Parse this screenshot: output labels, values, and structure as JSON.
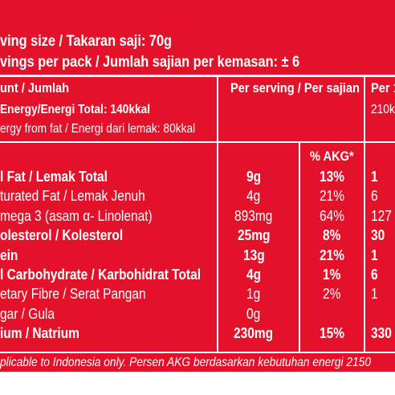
{
  "header": {
    "serving_size": "ving size / Takaran saji: 70g",
    "servings_per_pack": "vings per pack / Jumlah sajian per kemasan: ± 6"
  },
  "table": {
    "col1_header": "unt / Jumlah",
    "col2_header": "Per serving / Per sajian",
    "col3_header": "Per 1",
    "energy_total": "Energy/Energi Total: 140kkal",
    "energy_total_col3": "210k",
    "energy_fat": "ergy from fat / Energi dari lemak: 80kkal",
    "akg_header": "% AKG*",
    "rows": [
      {
        "label": "l Fat / Lemak Total",
        "amount": "9g",
        "akg": "13%",
        "col3": "1",
        "bold": true
      },
      {
        "label": "turated Fat / Lemak Jenuh",
        "amount": "4g",
        "akg": "21%",
        "col3": "6",
        "bold": false
      },
      {
        "label": "mega 3 (asam α- Linolenat)",
        "amount": "893mg",
        "akg": "64%",
        "col3": "127",
        "bold": false
      },
      {
        "label": "olesterol / Kolesterol",
        "amount": "25mg",
        "akg": "8%",
        "col3": "30",
        "bold": true
      },
      {
        "label": "ein",
        "amount": "13g",
        "akg": "21%",
        "col3": "1",
        "bold": true
      },
      {
        "label": "l Carbohydrate / Karbohidrat Total",
        "amount": "4g",
        "akg": "1%",
        "col3": "6",
        "bold": true
      },
      {
        "label": "etary Fibre / Serat Pangan",
        "amount": "1g",
        "akg": "2%",
        "col3": "1",
        "bold": false
      },
      {
        "label": "gar / Gula",
        "amount": "0g",
        "akg": "",
        "col3": "",
        "bold": false
      },
      {
        "label": "ium / Natrium",
        "amount": "230mg",
        "akg": "15%",
        "col3": "330",
        "bold": true
      }
    ]
  },
  "footnote": "plicable to Indonesia only. Persen AKG berdasarkan kebutuhan energi 2150"
}
